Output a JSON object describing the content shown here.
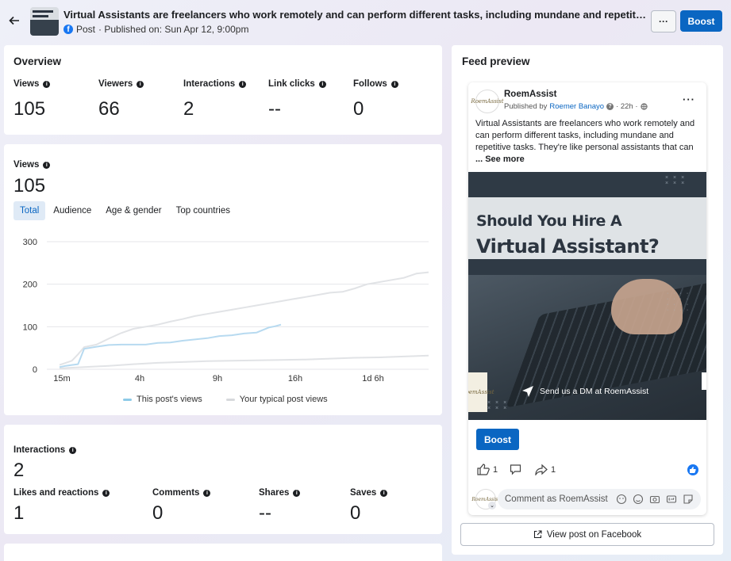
{
  "header": {
    "title": "Virtual Assistants are freelancers who work remotely and can perform different tasks, including mundane and repetitive tasks. They're like personal assistants that can",
    "post_type": "Post",
    "published": "· Published on: Sun Apr 12, 9:00pm",
    "more_label": "···",
    "boost_label": "Boost"
  },
  "overview": {
    "title": "Overview",
    "metrics": [
      {
        "label": "Views",
        "value": "105"
      },
      {
        "label": "Viewers",
        "value": "66"
      },
      {
        "label": "Interactions",
        "value": "2"
      },
      {
        "label": "Link clicks",
        "value": "--"
      },
      {
        "label": "Follows",
        "value": "0"
      }
    ]
  },
  "views": {
    "label": "Views",
    "value": "105",
    "tabs": [
      "Total",
      "Audience",
      "Age & gender",
      "Top countries"
    ]
  },
  "chart_data": {
    "type": "line",
    "x_ticks": [
      "15m",
      "4h",
      "9h",
      "16h",
      "1d 6h"
    ],
    "y_ticks": [
      "0",
      "100",
      "200",
      "300"
    ],
    "ylim": [
      0,
      300
    ],
    "grid": true,
    "legend_placement": "bottom",
    "series": [
      {
        "name": "This post's views",
        "color": "#b7daf0",
        "x": [
          0,
          0.5,
          1,
          1.5,
          2,
          3,
          4,
          5,
          6,
          7,
          8,
          9,
          10,
          11,
          12,
          13,
          14,
          15,
          16,
          17,
          17.5,
          18
        ],
        "y": [
          5,
          8,
          10,
          12,
          48,
          53,
          57,
          58,
          58,
          58,
          62,
          63,
          67,
          70,
          73,
          78,
          80,
          84,
          86,
          98,
          101,
          105
        ]
      },
      {
        "name": "Your typical post views",
        "color": "#e1e3e6",
        "x": [
          0,
          0.5,
          1,
          1.5,
          2,
          3,
          4,
          5,
          6,
          7,
          8,
          9,
          10,
          11,
          12,
          13,
          14,
          15,
          16,
          17,
          18,
          19,
          20,
          21,
          22,
          23,
          24,
          25,
          26,
          27,
          28,
          29,
          30
        ],
        "y": [
          10,
          15,
          20,
          35,
          52,
          58,
          72,
          85,
          95,
          100,
          105,
          112,
          118,
          125,
          130,
          135,
          140,
          145,
          150,
          155,
          160,
          165,
          170,
          175,
          180,
          182,
          190,
          200,
          205,
          210,
          215,
          225,
          228
        ]
      },
      {
        "name": "",
        "color": "#e1e3e6",
        "x": [
          0,
          2,
          4,
          6,
          8,
          10,
          12,
          14,
          16,
          18,
          20,
          22,
          24,
          26,
          28,
          30
        ],
        "y": [
          2,
          5,
          8,
          12,
          15,
          17,
          19,
          20,
          21,
          22,
          23,
          25,
          27,
          28,
          30,
          32
        ]
      }
    ]
  },
  "interactions": {
    "label": "Interactions",
    "value": "2",
    "metrics": [
      {
        "label": "Likes and reactions",
        "value": "1"
      },
      {
        "label": "Comments",
        "value": "0"
      },
      {
        "label": "Shares",
        "value": "--"
      },
      {
        "label": "Saves",
        "value": "0"
      }
    ]
  },
  "feed": {
    "title": "Feed preview",
    "page_name": "RoemAssist",
    "published_by": "Published by",
    "author": "Roemer Banayo",
    "time": "· 22h ·",
    "more": "···",
    "text": "Virtual Assistants are freelancers who work remotely and can perform different tasks, including mundane and repetitive tasks. They're like personal assistants that can",
    "see_more": "... See more",
    "image_line1": "Should You Hire A",
    "image_line2": "Virtual Assistant?",
    "image_cta": "Send us a DM at RoemAssist",
    "logo_text": "RoemAssist",
    "avatar_text": "RoemAssist",
    "boost_label": "Boost",
    "like_count": "1",
    "share_count": "1",
    "comment_placeholder": "Comment as RoemAssist",
    "view_on_fb": "View post on Facebook"
  },
  "colors": {
    "accent": "#0a66c2",
    "this_post": "#b7daf0",
    "typical": "#e1e3e6"
  }
}
